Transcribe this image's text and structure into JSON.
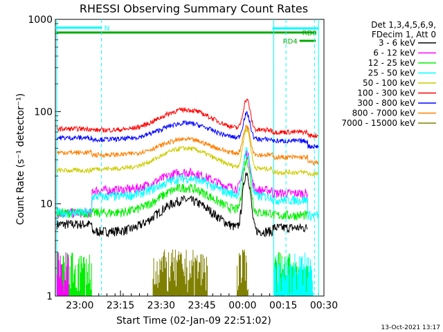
{
  "chart_data": {
    "type": "line",
    "title": "RHESSI Observing Summary Count Rates",
    "xlabel": "Start Time (02-Jan-09 22:51:02)",
    "ylabel": "Count Rate (s⁻¹ detector⁻¹)",
    "yscale": "log",
    "ylim": [
      1,
      1000
    ],
    "xlim": [
      "22:51",
      "00:30"
    ],
    "y_ticks": [
      "1",
      "10",
      "100",
      "1000"
    ],
    "x_ticks": [
      "23:00",
      "23:15",
      "23:30",
      "23:45",
      "00:00",
      "00:15",
      "00:30"
    ],
    "x_ticks_min": [
      9,
      24,
      39,
      54,
      69,
      84,
      99
    ],
    "date_label": "13-Oct-2021 13:17",
    "legend_header": [
      "Det 1,3,4,5,6,9,",
      "FDecim 1, Att 0"
    ],
    "series": [
      {
        "name": "3 - 6 keV",
        "color": "#000000",
        "pre": 6,
        "base": 5,
        "peak": 11,
        "flare": 22,
        "post": 5.5,
        "late": null
      },
      {
        "name": "6 - 12 keV",
        "color": "#ff00ff",
        "pre": 8,
        "base": 14,
        "peak": 22,
        "flare": 35,
        "post": 13,
        "late": null
      },
      {
        "name": "12 - 25 keV",
        "color": "#00ee00",
        "pre": 8,
        "base": 8,
        "peak": 15,
        "flare": 30,
        "post": 7.5,
        "late": null
      },
      {
        "name": "25 - 50 keV",
        "color": "#00ffff",
        "pre": 8,
        "base": 12,
        "peak": 19,
        "flare": 38,
        "post": 11,
        "late": 7.5
      },
      {
        "name": "50 - 100 keV",
        "color": "#cccc00",
        "pre": 23,
        "base": 24,
        "peak": 40,
        "flare": 65,
        "post": 22,
        "late": 21
      },
      {
        "name": "100 - 300 keV",
        "color": "#ff0000",
        "pre": 65,
        "base": 63,
        "peak": 105,
        "flare": 135,
        "post": 60,
        "late": 55
      },
      {
        "name": "300 - 800 keV",
        "color": "#0000ff",
        "pre": 52,
        "base": 50,
        "peak": 75,
        "flare": 95,
        "post": 48,
        "late": 42
      },
      {
        "name": "800 - 7000 keV",
        "color": "#ff7f00",
        "pre": 36,
        "base": 34,
        "peak": 50,
        "flare": 70,
        "post": 32,
        "late": 28
      },
      {
        "name": "7000 - 15000 keV",
        "color": "#808000",
        "pre": null,
        "base": null,
        "peak": null,
        "flare": null,
        "post": null,
        "late": null
      }
    ],
    "flag_bars": [
      {
        "label": "N",
        "color": "#00ffff",
        "x0": 0,
        "x1": 17
      },
      {
        "label": "RD0",
        "color": "#00aa00",
        "x0": 0,
        "x1": 96
      },
      {
        "label": "RD4",
        "color": "#00aa00",
        "x0": 90,
        "x1": 96
      },
      {
        "label": "",
        "color": "#00ffff",
        "x0": 80,
        "x1": 97
      }
    ]
  }
}
